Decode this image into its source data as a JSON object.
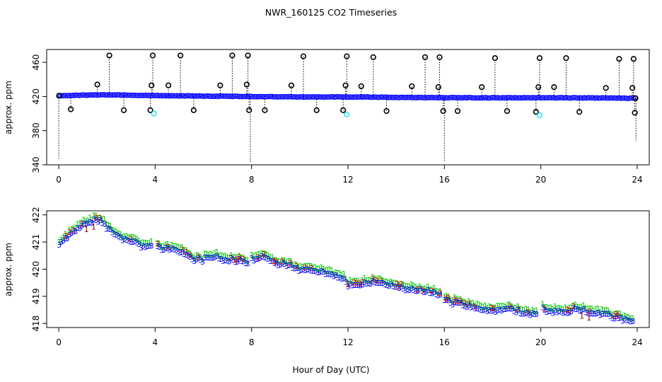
{
  "title": "NWR_160125  CO2 Timeseries",
  "xlabel": "Hour of Day (UTC)",
  "colors": {
    "black": "#000000",
    "blue": "#0000ff",
    "cyan": "#00e5ee",
    "red": "#ff0000",
    "green": "#00cc00",
    "dark_red": "#8b0000"
  },
  "chart_data": [
    {
      "type": "scatter",
      "panel": "top",
      "title": "NWR_160125  CO2 Timeseries",
      "ylabel": "approx. ppm",
      "xlim": [
        -0.5,
        24.5
      ],
      "ylim": [
        340,
        475
      ],
      "xticks": [
        0,
        4,
        8,
        12,
        16,
        20,
        24
      ],
      "yticks": [
        340,
        380,
        420,
        460
      ],
      "baseline": {
        "x": [
          0,
          2,
          4,
          6,
          8,
          10,
          12,
          14,
          16,
          18,
          20,
          22,
          24
        ],
        "y": [
          421,
          422,
          421,
          420.5,
          420,
          419.5,
          419.5,
          419,
          418.5,
          418.5,
          418.5,
          418.3,
          418
        ]
      },
      "spikes": {
        "x": [
          1.6,
          2.1,
          3.85,
          3.9,
          4.55,
          5.05,
          6.7,
          7.2,
          7.8,
          7.85,
          9.65,
          10.15,
          11.9,
          11.95,
          12.55,
          13.05,
          14.65,
          15.2,
          15.75,
          15.8,
          17.55,
          18.1,
          19.9,
          19.95,
          20.55,
          21.05,
          22.7,
          23.25,
          23.8,
          23.85
        ],
        "y": [
          434,
          468,
          433,
          468,
          433,
          468,
          433,
          468,
          434,
          468,
          433,
          467,
          433,
          467,
          432,
          466,
          432,
          466,
          431,
          466,
          431,
          465,
          431,
          465,
          431,
          465,
          430,
          464,
          430,
          464
        ]
      },
      "dips": {
        "x": [
          0.5,
          2.7,
          3.8,
          5.6,
          7.9,
          8.55,
          10.7,
          11.8,
          13.6,
          15.95,
          16.55,
          18.6,
          19.8,
          21.6,
          23.9
        ],
        "y": [
          405,
          404,
          404,
          404,
          404,
          404,
          404,
          404,
          403,
          403,
          403,
          403,
          402,
          402,
          401
        ]
      },
      "cyan_points": {
        "x": [
          3.95,
          11.95,
          19.95
        ],
        "y": [
          400,
          399,
          398
        ]
      },
      "drop_lines": {
        "x": [
          0.0,
          7.95,
          16.0,
          23.95
        ],
        "y": [
          346,
          343,
          343,
          368
        ]
      }
    },
    {
      "type": "scatter",
      "panel": "bottom",
      "ylabel": "approx. ppm",
      "xlim": [
        -0.5,
        24.5
      ],
      "ylim": [
        417.85,
        422.15
      ],
      "xticks": [
        0,
        4,
        8,
        12,
        16,
        20,
        24
      ],
      "yticks": [
        418,
        419,
        420,
        421,
        422
      ],
      "markers": [
        "1",
        "2",
        "3"
      ],
      "trend": {
        "x": [
          0.0,
          0.3,
          0.6,
          1.0,
          1.3,
          1.6,
          1.8,
          2.0,
          2.2,
          2.5,
          3.0,
          3.5,
          3.8,
          4.0,
          4.5,
          5.0,
          5.3,
          5.6,
          6.0,
          6.5,
          7.0,
          7.5,
          7.8,
          8.0,
          8.5,
          9.0,
          9.5,
          10.0,
          10.5,
          11.0,
          11.5,
          11.8,
          12.0,
          12.5,
          13.0,
          13.5,
          14.0,
          14.5,
          15.0,
          15.5,
          15.8,
          16.0,
          16.5,
          17.0,
          17.5,
          18.0,
          18.5,
          19.0,
          19.5,
          19.8,
          20.0,
          20.5,
          21.0,
          21.5,
          22.0,
          22.5,
          23.0,
          23.5,
          23.8
        ],
        "y": [
          420.9,
          421.2,
          421.4,
          421.7,
          421.8,
          421.9,
          421.8,
          421.6,
          421.4,
          421.2,
          421.1,
          420.9,
          420.9,
          420.9,
          420.8,
          420.7,
          420.6,
          420.4,
          420.4,
          420.5,
          420.4,
          420.4,
          420.3,
          420.4,
          420.5,
          420.3,
          420.2,
          420.0,
          420.0,
          419.9,
          419.8,
          419.7,
          419.5,
          419.5,
          419.6,
          419.5,
          419.4,
          419.3,
          419.3,
          419.2,
          419.1,
          418.9,
          418.8,
          418.7,
          418.6,
          418.5,
          418.6,
          418.5,
          418.4,
          418.4,
          418.6,
          418.5,
          418.5,
          418.6,
          418.5,
          418.4,
          418.3,
          418.2,
          418.1
        ]
      }
    }
  ]
}
